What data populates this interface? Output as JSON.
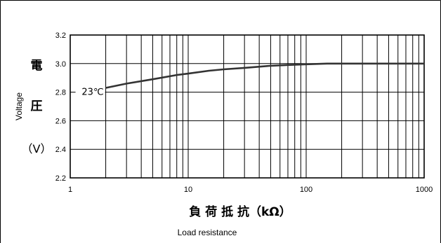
{
  "chart_data": {
    "type": "line",
    "x_scale": "log",
    "xlim": [
      1,
      1000
    ],
    "ylim": [
      2.2,
      3.2
    ],
    "x_ticks": [
      1,
      10,
      100,
      1000
    ],
    "x_tick_labels": [
      "1",
      "10",
      "100",
      "1000"
    ],
    "y_ticks": [
      2.2,
      2.4,
      2.6,
      2.8,
      3.0,
      3.2
    ],
    "y_tick_labels": [
      "2.2",
      "2.4",
      "2.6",
      "2.8",
      "3.0",
      "3.2"
    ],
    "grid": true,
    "series": [
      {
        "name": "23℃",
        "x": [
          2,
          3,
          5,
          8,
          10,
          15,
          20,
          30,
          50,
          70,
          100,
          150,
          200,
          300,
          500,
          700,
          1000
        ],
        "y": [
          2.83,
          2.86,
          2.89,
          2.92,
          2.93,
          2.95,
          2.96,
          2.97,
          2.985,
          2.99,
          2.995,
          3.0,
          3.0,
          3.0,
          3.0,
          3.0,
          3.0
        ]
      }
    ],
    "ylabel_jp": [
      "電",
      "圧",
      "（V）"
    ],
    "ylabel_en": "Voltage",
    "xlabel_jp": "負 荷 抵 抗（kΩ）",
    "xlabel_en": "Load resistance",
    "colors": {
      "line": "#333333",
      "grid": "#000000"
    }
  }
}
